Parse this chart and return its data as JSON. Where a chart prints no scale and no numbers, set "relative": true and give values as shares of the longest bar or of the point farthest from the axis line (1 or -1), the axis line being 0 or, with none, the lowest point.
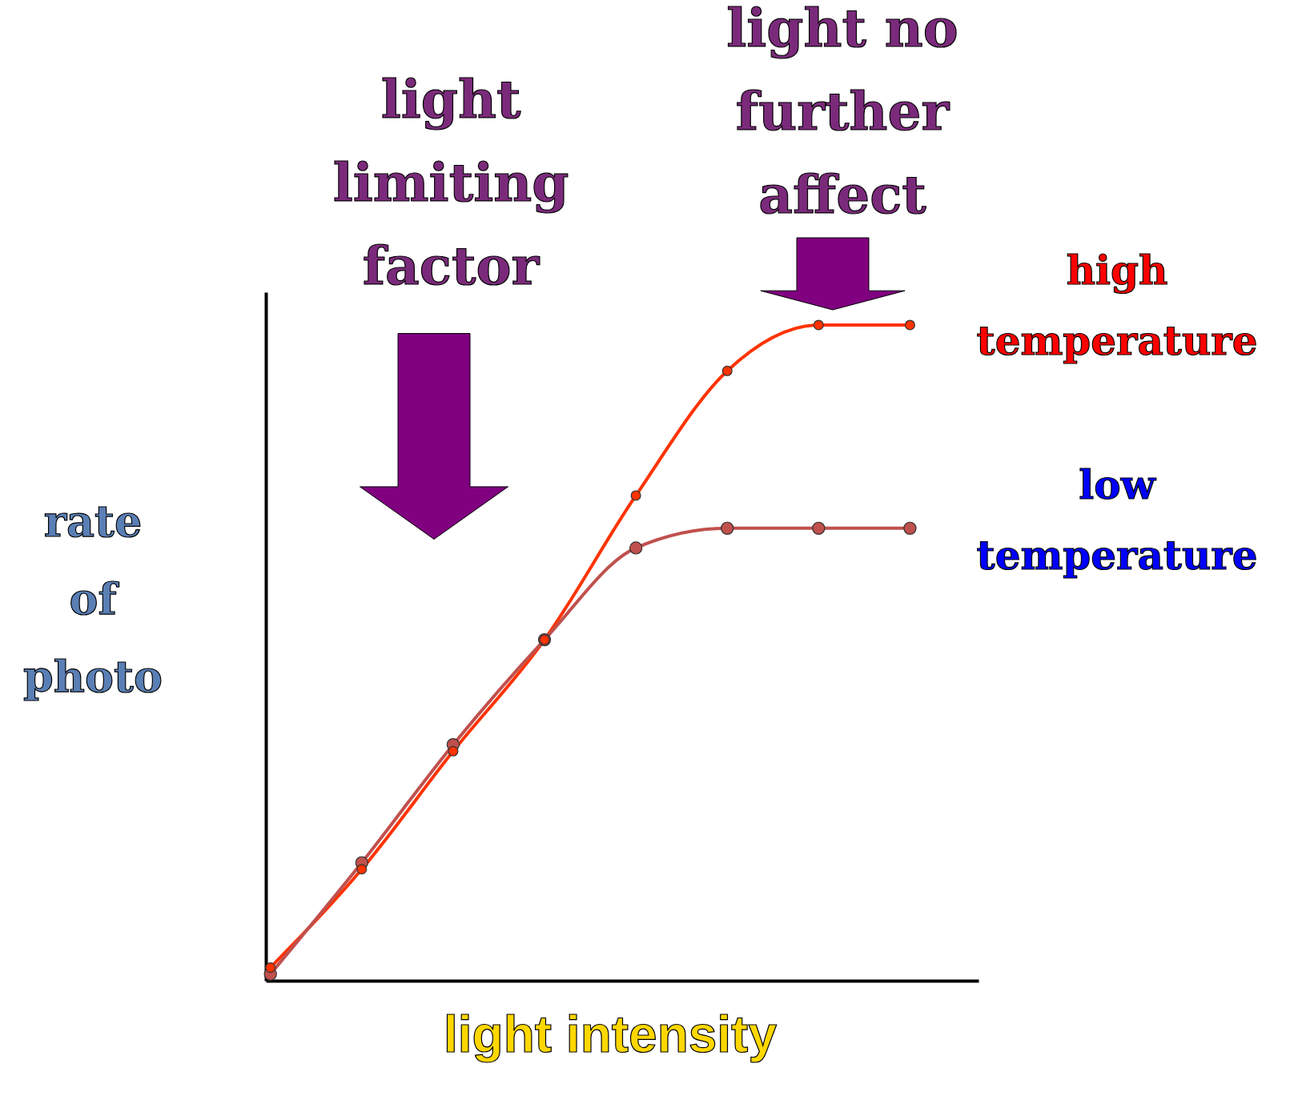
{
  "chart_data": {
    "type": "line",
    "relative": true,
    "xlabel": "light intensity",
    "ylabel": "rate\nof\nphoto",
    "categories": [
      null,
      null,
      null,
      null,
      null,
      null,
      null,
      null
    ],
    "series": [
      {
        "name": "high\ntemperature",
        "color": "#ff3300",
        "values": [
          0.02,
          0.17,
          0.35,
          0.52,
          0.74,
          0.93,
          1.0,
          1.0
        ]
      },
      {
        "name": "low\ntemperature",
        "color": "#c0504d",
        "values": [
          0.01,
          0.18,
          0.36,
          0.52,
          0.66,
          0.69,
          0.69,
          0.69
        ]
      }
    ],
    "annotations": [
      "light\nlimiting\nfactor",
      "light no\nfurther\naffect"
    ],
    "marker": "circle",
    "line_style": "solid",
    "grid": false,
    "legend": false
  }
}
